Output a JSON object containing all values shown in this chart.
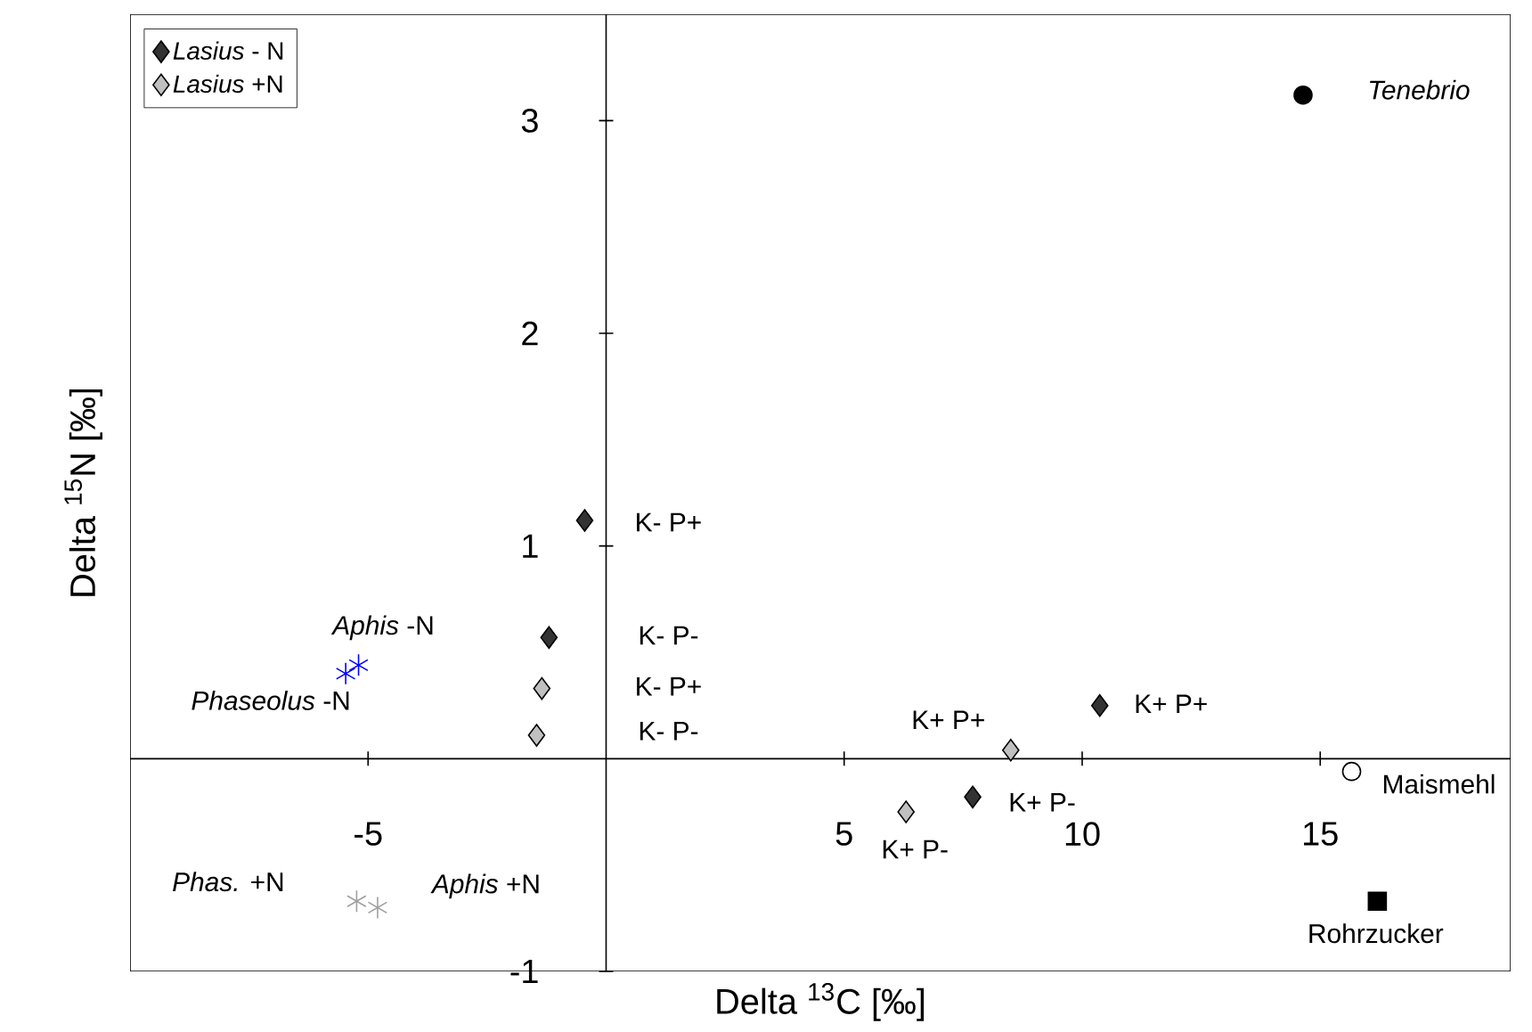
{
  "chart_data": {
    "type": "scatter",
    "xlabel": "Delta $^{13}$C [‰]",
    "ylabel": "Delta $^{15}$N [‰]",
    "xlim": [
      -10,
      19
    ],
    "ylim": [
      -1,
      3.5
    ],
    "xticks": [
      -5,
      5,
      10,
      15
    ],
    "yticks": [
      -1,
      1,
      2,
      3
    ],
    "grid": false,
    "legend": "top left",
    "series": [
      {
        "name": "*Lasius* - N",
        "color": "#333333",
        "marker": "diamond",
        "x": [
          -0.45,
          -1.2,
          10.37,
          7.7
        ],
        "values": [
          1.12,
          0.57,
          0.25,
          -0.18
        ]
      },
      {
        "name": "*Lasius* +N",
        "color": "#c0c0c0",
        "marker": "diamond",
        "x": [
          -1.35,
          -1.46,
          8.5,
          6.3
        ],
        "values": [
          0.33,
          0.11,
          0.04,
          -0.25
        ]
      },
      {
        "color": "#0000ff",
        "marker": "cross",
        "x": [
          -5.2,
          -5.47
        ],
        "values": [
          0.44,
          0.4
        ]
      },
      {
        "color": "#a0a0a0",
        "marker": "cross",
        "x": [
          -5.24,
          -4.8
        ],
        "values": [
          -0.67,
          -0.7
        ]
      },
      {
        "color": "#000000",
        "marker": "circle",
        "x": [
          14.64
        ],
        "values": [
          3.12
        ]
      },
      {
        "color": "#ffffff",
        "marker": "circle",
        "x": [
          15.66
        ],
        "values": [
          -0.06
        ]
      },
      {
        "color": "#000000",
        "marker": "square",
        "x": [
          16.2
        ],
        "values": [
          -0.67
        ]
      }
    ],
    "annotations": [
      {
        "text": "K- P+",
        "x": -0.45,
        "y": 1.12
      },
      "K- P-",
      "K- P+",
      "K- P-",
      {
        "text": "K+ P+",
        "x": 8.5,
        "y": 0.04
      },
      {
        "text": "K+ P+",
        "x": 10.37,
        "y": 0.25
      },
      {
        "text": "K+ P-",
        "x": 7.7,
        "y": -0.18
      },
      {
        "text": "K+ P-",
        "x": 6.3,
        "y": -0.25
      },
      {
        "text": "*Tenebrio*",
        "x": 14.64,
        "y": 3.12
      },
      {
        "text": "Maismehl",
        "x": 15.66,
        "y": -0.06
      },
      {
        "text": "Rohrzucker",
        "x": 16.2,
        "y": -0.67
      },
      {
        "text": "*Aphis* -N",
        "x": -5.2,
        "y": 0.44
      },
      {
        "text": "*Phaseolus* -N",
        "x": -5.47,
        "y": 0.4
      },
      {
        "text": "*Phas.* +N",
        "x": -5.24,
        "y": -0.67
      },
      {
        "text": "*Aphis* +N",
        "x": -4.8,
        "y": -0.7
      }
    ]
  }
}
